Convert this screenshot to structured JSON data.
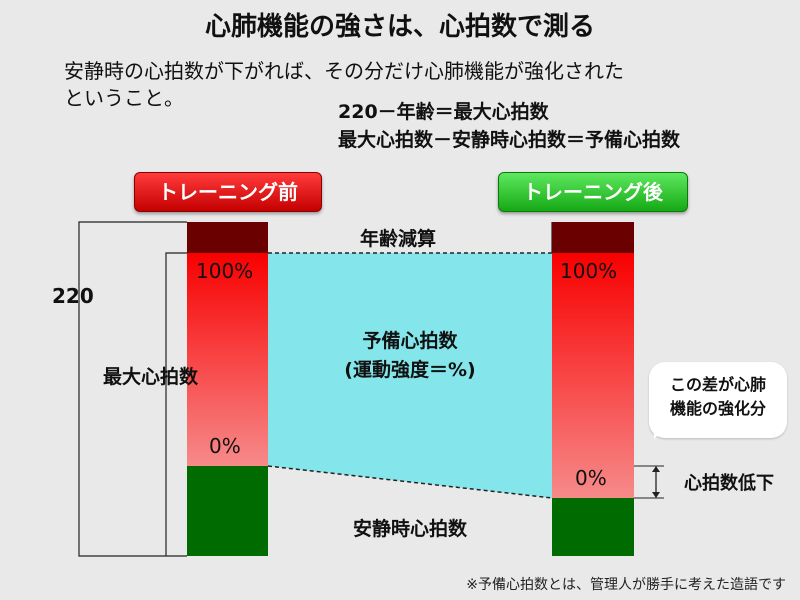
{
  "title": "心肺機能の強さは、心拍数で測る",
  "intro": {
    "line1": "安静時の心拍数が下がれば、その分だけ心肺機能が強化された",
    "line2": "ということ。"
  },
  "formulas": [
    "220－年齢＝最大心拍数",
    "最大心拍数－安静時心拍数＝予備心拍数"
  ],
  "badges": {
    "before": "トレーニング前",
    "after": "トレーニング後"
  },
  "diagram": {
    "total_label": "220",
    "age_label": "年齢減算",
    "max_hr_label": "最大心拍数",
    "reserve_label_1": "予備心拍数",
    "reserve_label_2": "(運動強度＝%)",
    "resting_label": "安静時心拍数",
    "drop_label": "心拍数低下",
    "pct_top_before": "100%",
    "pct_bottom_before": "0%",
    "pct_top_after": "100%",
    "pct_bottom_after": "0%"
  },
  "callout": {
    "line1": "この差が心肺",
    "line2": "機能の強化分"
  },
  "footnote": "※予備心拍数とは、管理人が勝手に考えた造語です",
  "colors": {
    "age_segment": "#6a0000",
    "reserve_area": "#84e6ea",
    "resting_segment": "#006b00",
    "before_badge": "#dd0000",
    "after_badge": "#22bb22"
  }
}
